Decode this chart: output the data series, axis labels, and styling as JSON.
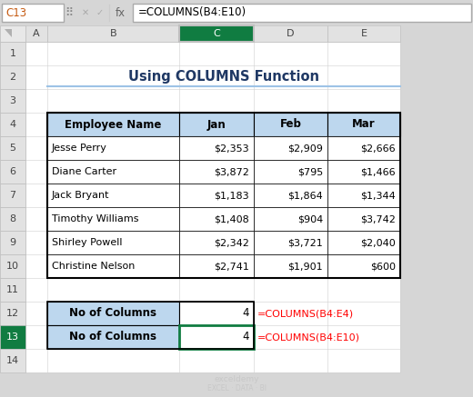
{
  "title": "Using COLUMNS Function",
  "formula_bar_cell": "C13",
  "formula_bar_formula": "=COLUMNS(B4:E10)",
  "col_labels": [
    "A",
    "B",
    "C",
    "D",
    "E"
  ],
  "row_labels": [
    "1",
    "2",
    "3",
    "4",
    "5",
    "6",
    "7",
    "8",
    "9",
    "10",
    "11",
    "12",
    "13",
    "14"
  ],
  "main_table_headers": [
    "Employee Name",
    "Jan",
    "Feb",
    "Mar"
  ],
  "main_table_rows": [
    [
      "Jesse Perry",
      "$2,353",
      "$2,909",
      "$2,666"
    ],
    [
      "Diane Carter",
      "$3,872",
      "$795",
      "$1,466"
    ],
    [
      "Jack Bryant",
      "$1,183",
      "$1,864",
      "$1,344"
    ],
    [
      "Timothy Williams",
      "$1,408",
      "$904",
      "$3,742"
    ],
    [
      "Shirley Powell",
      "$2,342",
      "$3,721",
      "$2,040"
    ],
    [
      "Christine Nelson",
      "$2,741",
      "$1,901",
      "$600"
    ]
  ],
  "bottom_rows": [
    [
      "No of Columns",
      "4",
      "=COLUMNS(B4:E4)"
    ],
    [
      "No of Columns",
      "4",
      "=COLUMNS(B4:E10)"
    ]
  ],
  "header_bg": "#BDD7EE",
  "bottom_label_bg": "#BDD7EE",
  "formula_color": "#FF0000",
  "title_color": "#1F3864",
  "col_header_selected_bg": "#107C41",
  "col_header_bg": "#E2E2E2",
  "row_header_bg": "#E2E2E2",
  "row_header_selected_bg": "#107C41",
  "cell_highlight_C": "#E2EFDA",
  "toolbar_bg": "#D6D6D6",
  "white": "#FFFFFF",
  "grid_light": "#D0D0D0",
  "watermark_color": "#C8C8C8",
  "underline_color": "#9DC3E6",
  "selected_border_color": "#107C41"
}
